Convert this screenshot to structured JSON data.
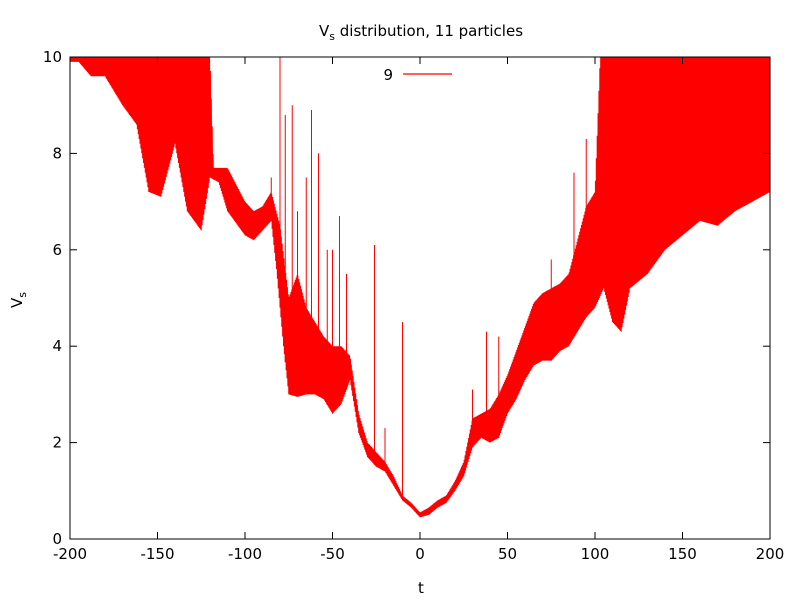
{
  "chart_data": {
    "type": "line",
    "title": {
      "main": "V",
      "sub": "s",
      "rest": " distribution, 11 particles"
    },
    "xlabel": "t",
    "ylabel": {
      "main": "V",
      "sub": "s"
    },
    "xlim": [
      -200,
      200
    ],
    "ylim": [
      0,
      10
    ],
    "xticks": [
      -200,
      -150,
      -100,
      -50,
      0,
      50,
      100,
      150,
      200
    ],
    "yticks": [
      0,
      2,
      4,
      6,
      8,
      10
    ],
    "legend_position": "top-center",
    "grid": false,
    "series": [
      {
        "name": "9",
        "color": "#ff0000",
        "baseline": [
          [
            -195,
            9.9
          ],
          [
            -188,
            9.6
          ],
          [
            -180,
            9.6
          ],
          [
            -170,
            9.0
          ],
          [
            -162,
            8.6
          ],
          [
            -155,
            7.2
          ],
          [
            -148,
            7.1
          ],
          [
            -140,
            8.2
          ],
          [
            -133,
            6.8
          ],
          [
            -125,
            6.4
          ],
          [
            -120,
            7.5
          ],
          [
            -115,
            7.4
          ],
          [
            -110,
            6.8
          ],
          [
            -100,
            6.3
          ],
          [
            -95,
            6.2
          ],
          [
            -90,
            6.4
          ],
          [
            -85,
            6.6
          ],
          [
            -82,
            5.6
          ],
          [
            -78,
            4.0
          ],
          [
            -75,
            3.0
          ],
          [
            -70,
            2.95
          ],
          [
            -65,
            3.0
          ],
          [
            -60,
            3.0
          ],
          [
            -55,
            2.9
          ],
          [
            -50,
            2.6
          ],
          [
            -45,
            2.8
          ],
          [
            -40,
            3.3
          ],
          [
            -35,
            2.2
          ],
          [
            -30,
            1.7
          ],
          [
            -25,
            1.5
          ],
          [
            -20,
            1.4
          ],
          [
            -15,
            1.1
          ],
          [
            -10,
            0.8
          ],
          [
            -5,
            0.65
          ],
          [
            0,
            0.45
          ],
          [
            5,
            0.5
          ],
          [
            10,
            0.65
          ],
          [
            15,
            0.75
          ],
          [
            20,
            1.0
          ],
          [
            25,
            1.3
          ],
          [
            30,
            1.9
          ],
          [
            35,
            2.1
          ],
          [
            40,
            2.0
          ],
          [
            45,
            2.1
          ],
          [
            50,
            2.6
          ],
          [
            55,
            2.9
          ],
          [
            60,
            3.3
          ],
          [
            65,
            3.6
          ],
          [
            70,
            3.7
          ],
          [
            75,
            3.7
          ],
          [
            80,
            3.9
          ],
          [
            85,
            4.0
          ],
          [
            90,
            4.3
          ],
          [
            95,
            4.6
          ],
          [
            100,
            4.8
          ],
          [
            105,
            5.2
          ],
          [
            110,
            4.5
          ],
          [
            115,
            4.3
          ],
          [
            120,
            5.2
          ],
          [
            130,
            5.5
          ],
          [
            140,
            6.0
          ],
          [
            150,
            6.3
          ],
          [
            160,
            6.6
          ],
          [
            170,
            6.5
          ],
          [
            180,
            6.8
          ],
          [
            190,
            7.0
          ],
          [
            200,
            7.2
          ]
        ],
        "upper": [
          [
            -195,
            10.0
          ],
          [
            -170,
            10.0
          ],
          [
            -160,
            10.0
          ],
          [
            -150,
            10.0
          ],
          [
            -140,
            10.0
          ],
          [
            -130,
            10.0
          ],
          [
            -120,
            10.0
          ],
          [
            -118,
            7.7
          ],
          [
            -110,
            7.7
          ],
          [
            -100,
            7.0
          ],
          [
            -95,
            6.8
          ],
          [
            -90,
            6.9
          ],
          [
            -85,
            7.2
          ],
          [
            -80,
            6.5
          ],
          [
            -75,
            5.0
          ],
          [
            -70,
            5.5
          ],
          [
            -65,
            4.8
          ],
          [
            -60,
            4.5
          ],
          [
            -55,
            4.2
          ],
          [
            -50,
            4.0
          ],
          [
            -45,
            4.0
          ],
          [
            -40,
            3.8
          ],
          [
            -35,
            2.6
          ],
          [
            -30,
            2.0
          ],
          [
            -25,
            1.8
          ],
          [
            -20,
            1.6
          ],
          [
            -15,
            1.3
          ],
          [
            -10,
            0.9
          ],
          [
            -5,
            0.75
          ],
          [
            0,
            0.55
          ],
          [
            5,
            0.65
          ],
          [
            10,
            0.8
          ],
          [
            15,
            0.9
          ],
          [
            20,
            1.2
          ],
          [
            25,
            1.6
          ],
          [
            30,
            2.5
          ],
          [
            35,
            2.6
          ],
          [
            40,
            2.7
          ],
          [
            45,
            3.0
          ],
          [
            50,
            3.4
          ],
          [
            55,
            3.9
          ],
          [
            60,
            4.4
          ],
          [
            65,
            4.9
          ],
          [
            70,
            5.1
          ],
          [
            75,
            5.2
          ],
          [
            80,
            5.3
          ],
          [
            85,
            5.5
          ],
          [
            90,
            6.2
          ],
          [
            95,
            6.9
          ],
          [
            100,
            7.2
          ],
          [
            103,
            10.0
          ],
          [
            110,
            10.0
          ],
          [
            120,
            10.0
          ],
          [
            130,
            10.0
          ],
          [
            140,
            10.0
          ],
          [
            150,
            10.0
          ],
          [
            160,
            10.0
          ],
          [
            170,
            10.0
          ],
          [
            180,
            10.0
          ],
          [
            190,
            10.0
          ],
          [
            200,
            10.0
          ]
        ],
        "spikes": [
          [
            -85,
            7.5
          ],
          [
            -80,
            10.0
          ],
          [
            -77,
            8.8
          ],
          [
            -73,
            9.0
          ],
          [
            -70,
            6.8
          ],
          [
            -65,
            7.5
          ],
          [
            -62,
            8.9
          ],
          [
            -58,
            8.0
          ],
          [
            -53,
            6.0
          ],
          [
            -50,
            6.0
          ],
          [
            -46,
            6.7
          ],
          [
            -42,
            5.5
          ],
          [
            -26,
            6.1
          ],
          [
            -20,
            2.3
          ],
          [
            -10,
            4.5
          ],
          [
            30,
            3.1
          ],
          [
            38,
            4.3
          ],
          [
            45,
            4.2
          ],
          [
            75,
            5.8
          ],
          [
            88,
            7.6
          ],
          [
            95,
            8.3
          ]
        ]
      }
    ]
  }
}
